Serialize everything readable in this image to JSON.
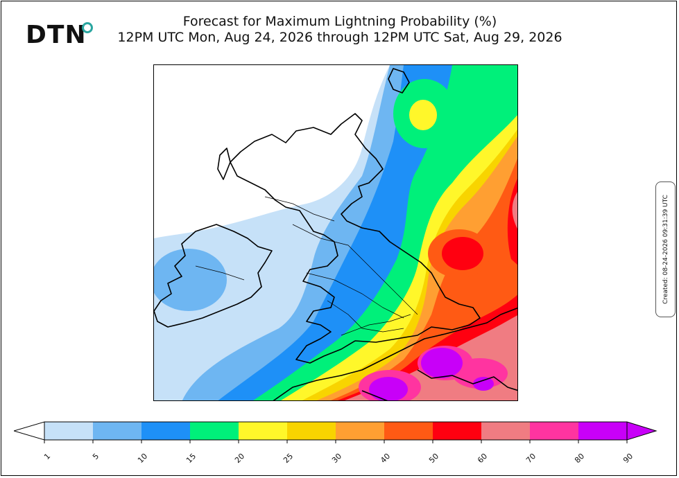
{
  "brand": {
    "logo_text": "DTN"
  },
  "title": {
    "line1": "Forecast for Maximum Lightning Probability (%)",
    "line2": "12PM UTC Mon, Aug 24, 2026 through 12PM UTC Sat, Aug 29, 2026"
  },
  "created_stamp": "Created: 08-24-2026 09:31:39 UTC",
  "colorbar": {
    "ticks": [
      "1",
      "5",
      "10",
      "15",
      "20",
      "25",
      "30",
      "40",
      "50",
      "60",
      "70",
      "80",
      "90"
    ],
    "colors": [
      "#c6e1f8",
      "#6eb6f2",
      "#1e90f7",
      "#00f07a",
      "#fff72a",
      "#f8d400",
      "#ff9f32",
      "#ff5a14",
      "#ff0010",
      "#f07c82",
      "#ff34a0",
      "#c800f8"
    ],
    "under_color": "#ffffff",
    "over_color": "#c800f8"
  }
}
